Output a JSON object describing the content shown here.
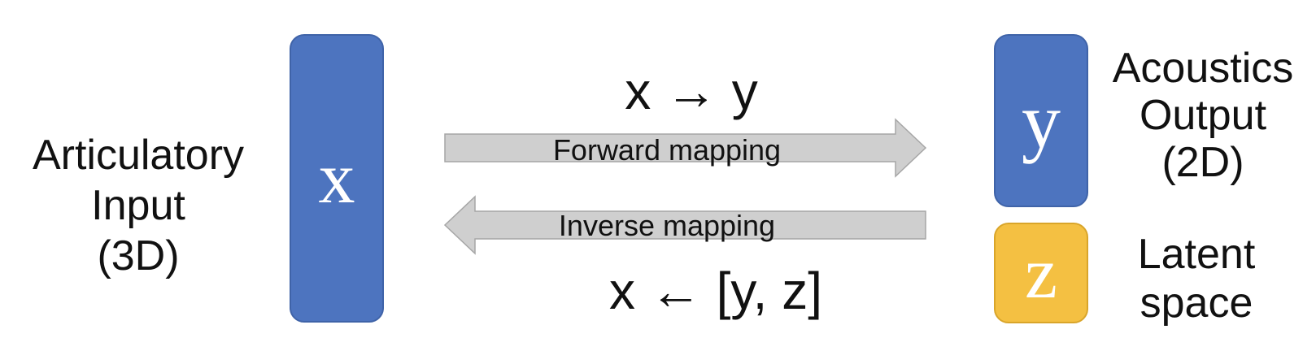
{
  "input_label": {
    "line1": "Articulatory",
    "line2": "Input",
    "line3": "(3D)"
  },
  "output_label": {
    "line1": "Acoustics",
    "line2": "Output",
    "line3": "(2D)"
  },
  "latent_label": {
    "line1": "Latent",
    "line2": "space"
  },
  "boxes": {
    "x": "x",
    "y": "y",
    "z": "z"
  },
  "forward": {
    "formula": "x → y",
    "label": "Forward mapping"
  },
  "inverse": {
    "formula": "x ← [y, z]",
    "label": "Inverse mapping"
  },
  "colors": {
    "blue_box": "#4d74bf",
    "yellow_box": "#f4c042",
    "arrow_fill": "#cfcfcf",
    "arrow_stroke": "#a6a6a6"
  }
}
